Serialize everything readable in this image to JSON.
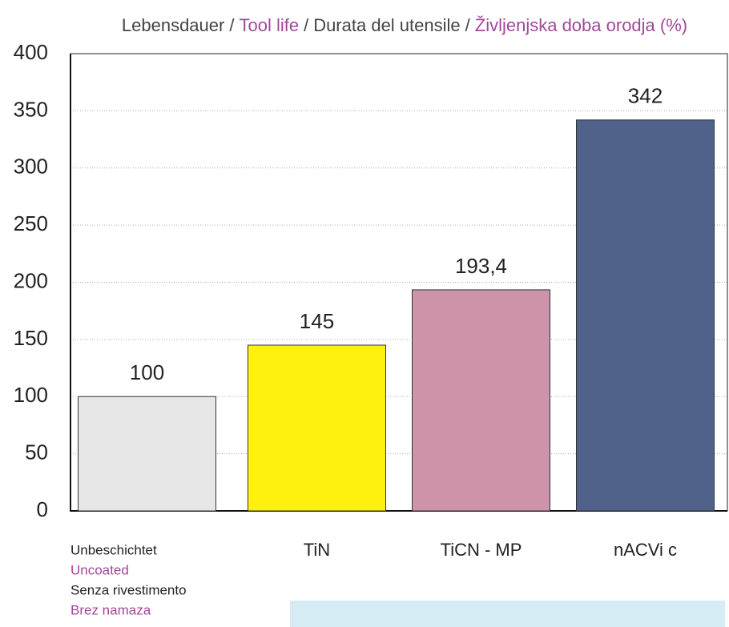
{
  "chart_data": {
    "type": "bar",
    "title": [
      "Lebensdauer",
      "Tool life",
      "Durata del utensile",
      "Življenjska doba orodja (%)"
    ],
    "title_separator": "/",
    "categories": [
      [
        "Unbeschichtet",
        "Uncoated",
        "Senza rivestimento",
        "Brez namaza"
      ],
      [
        "TiN"
      ],
      [
        "TiCN - MP"
      ],
      [
        "nACVi c"
      ]
    ],
    "values": [
      100,
      145,
      193.4,
      342
    ],
    "value_labels": [
      "100",
      "145",
      "193,4",
      "342"
    ],
    "colors": [
      "#e5e6e5",
      "#fff10f",
      "#cc93ab",
      "#51628a"
    ],
    "ylim": [
      0,
      400
    ],
    "yticks": [
      0,
      50,
      100,
      150,
      200,
      250,
      300,
      350,
      400
    ],
    "grid": true
  }
}
